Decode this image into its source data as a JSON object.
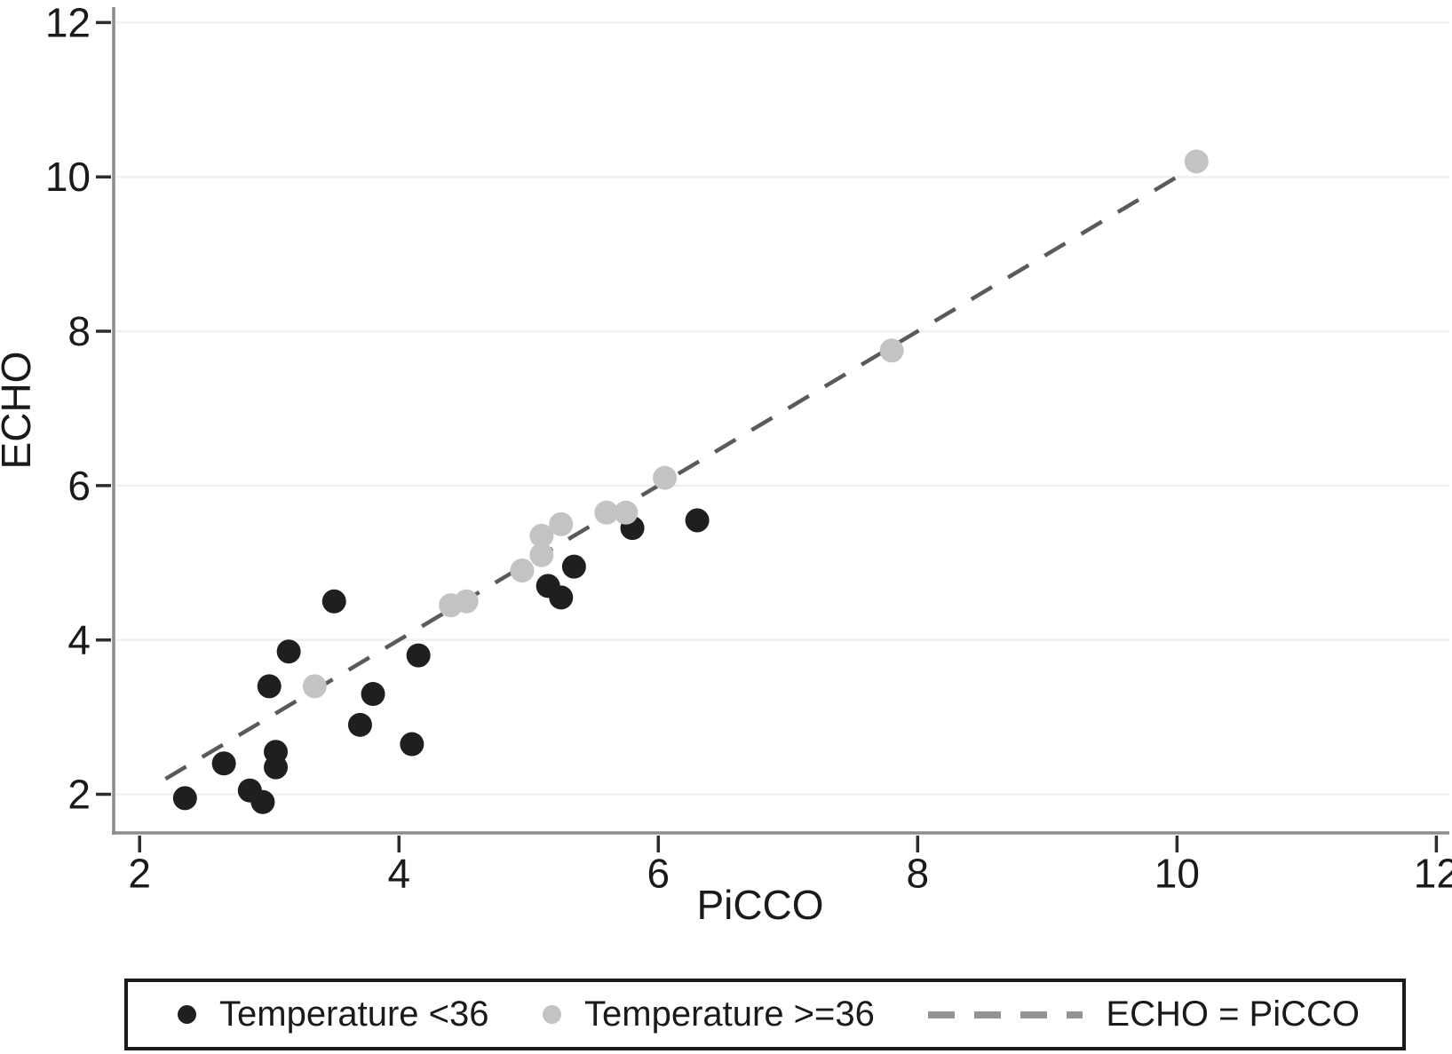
{
  "figure": {
    "xlabel": "PiCCO",
    "ylabel": "ECHO"
  },
  "legend": {
    "items": [
      {
        "label": "Temperature <36",
        "marker": "dot",
        "color": "#1f1f1f"
      },
      {
        "label": "Temperature >=36",
        "marker": "dot",
        "color": "#c3c3c3"
      },
      {
        "label": "ECHO = PiCCO",
        "marker": "dashed-line",
        "color": "#949494"
      }
    ]
  },
  "chart_data": {
    "type": "scatter",
    "title": "",
    "xlabel": "PiCCO",
    "ylabel": "ECHO",
    "xlim": [
      1.8,
      12.1
    ],
    "ylim": [
      1.5,
      12.2
    ],
    "x_ticks": [
      2,
      4,
      6,
      8,
      10,
      12
    ],
    "y_ticks": [
      2,
      4,
      6,
      8,
      10,
      12
    ],
    "grid": "horizontal-only",
    "legend_position": "bottom",
    "colors": {
      "grid": "#f0f0f0",
      "axis": "#8c8c8c",
      "tick": "#2b2b2b",
      "text": "#1a1a1a"
    },
    "series": [
      {
        "name": "Temperature <36",
        "marker": "circle",
        "color": "#1f1f1f",
        "points": [
          [
            2.35,
            1.95
          ],
          [
            2.65,
            2.4
          ],
          [
            2.85,
            2.05
          ],
          [
            2.95,
            1.9
          ],
          [
            3.05,
            2.55
          ],
          [
            3.05,
            2.35
          ],
          [
            3.0,
            3.4
          ],
          [
            3.15,
            3.85
          ],
          [
            3.5,
            4.5
          ],
          [
            3.7,
            2.9
          ],
          [
            3.8,
            3.3
          ],
          [
            4.1,
            2.65
          ],
          [
            4.15,
            3.8
          ],
          [
            5.15,
            4.7
          ],
          [
            5.25,
            4.55
          ],
          [
            5.35,
            4.95
          ],
          [
            5.8,
            5.45
          ],
          [
            6.3,
            5.55
          ]
        ]
      },
      {
        "name": "Temperature >=36",
        "marker": "circle",
        "color": "#c3c3c3",
        "points": [
          [
            3.35,
            3.4
          ],
          [
            4.4,
            4.45
          ],
          [
            4.52,
            4.5
          ],
          [
            4.95,
            4.9
          ],
          [
            5.1,
            5.1
          ],
          [
            5.1,
            5.35
          ],
          [
            5.25,
            5.5
          ],
          [
            5.6,
            5.65
          ],
          [
            5.75,
            5.65
          ],
          [
            6.05,
            6.1
          ],
          [
            7.8,
            7.75
          ],
          [
            10.15,
            10.2
          ]
        ]
      }
    ],
    "reference_line": {
      "name": "ECHO = PiCCO",
      "style": "dashed",
      "color": "#5a5a5a",
      "from": [
        2.2,
        2.2
      ],
      "to": [
        10.2,
        10.2
      ]
    }
  }
}
